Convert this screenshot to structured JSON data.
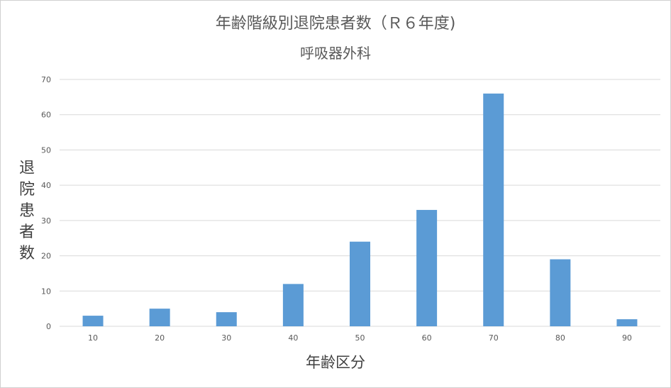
{
  "chart_data": {
    "type": "bar",
    "title": "年齢階級別退院患者数（Ｒ６年度)",
    "subtitle": "呼吸器外科",
    "xlabel": "年齢区分",
    "ylabel": "退院患者数",
    "categories": [
      "10",
      "20",
      "30",
      "40",
      "50",
      "60",
      "70",
      "80",
      "90"
    ],
    "values": [
      3,
      5,
      4,
      12,
      24,
      33,
      66,
      19,
      2
    ],
    "ylim": [
      0,
      70
    ],
    "yticks": [
      "0",
      "10",
      "20",
      "30",
      "40",
      "50",
      "60",
      "70"
    ],
    "grid": true,
    "bar_color": "#5b9bd5",
    "grid_color": "#d9d9d9"
  }
}
